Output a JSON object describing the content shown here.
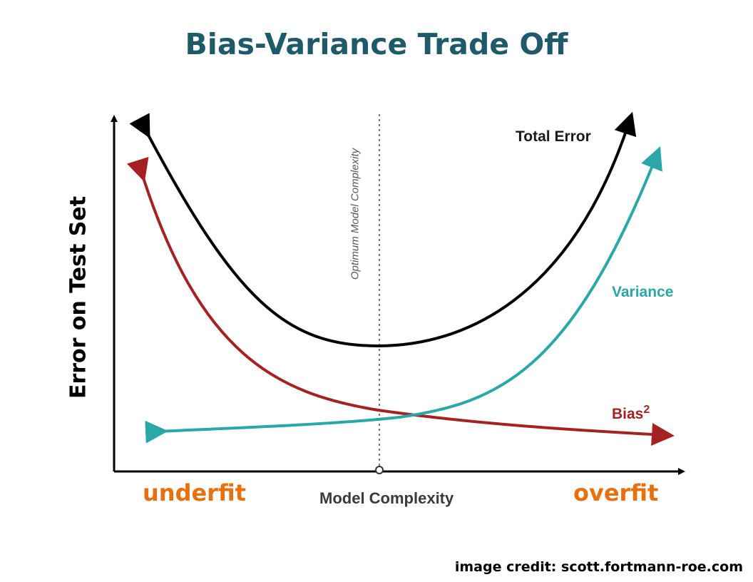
{
  "title": "Bias-Variance Trade Off",
  "axes": {
    "y_label": "Error on Test Set",
    "x_label": "Model Complexity"
  },
  "optimum_label": "Optimum Model Complexity",
  "regions": {
    "left": "underfit",
    "right": "overfit"
  },
  "curves": {
    "total_error": "Total Error",
    "variance": "Variance",
    "bias_label": "Bias",
    "bias_superscript": "2"
  },
  "credit": "image credit: scott.fortmann-roe.com",
  "colors": {
    "title": "#1f5a6a",
    "total_error": "#000000",
    "variance": "#2aa7a7",
    "bias": "#a52222",
    "fit_labels": "#e8700f"
  }
}
